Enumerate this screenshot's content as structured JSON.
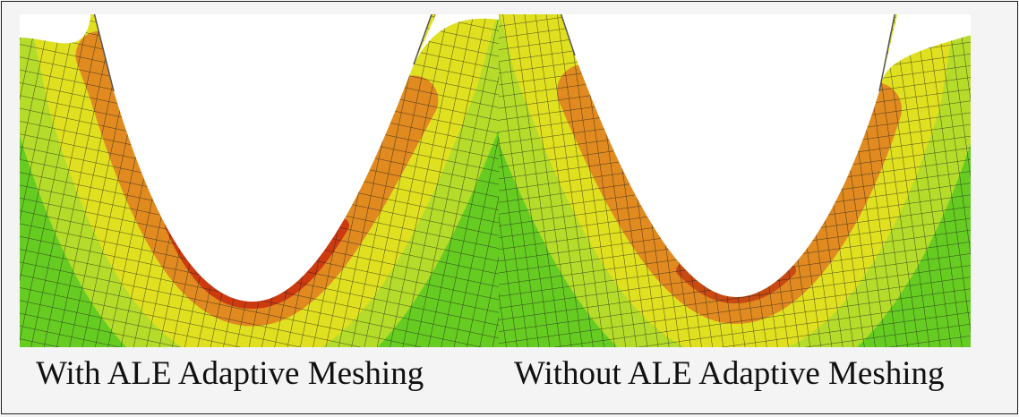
{
  "captions": {
    "left": "With ALE Adaptive Meshing",
    "right": "Without ALE Adaptive Meshing"
  }
}
